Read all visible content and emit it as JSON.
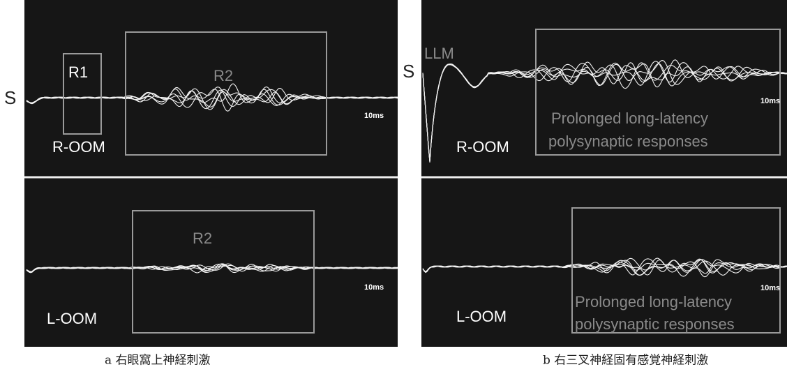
{
  "panel_a": {
    "caption": "a  右眼窩上神経刺激",
    "top": {
      "stimulus": "S",
      "r1": "R1",
      "r2": "R2",
      "channel": "R-OOM",
      "scale": "10ms"
    },
    "bottom": {
      "r2": "R2",
      "channel": "L-OOM",
      "scale": "10ms"
    }
  },
  "panel_b": {
    "caption": "b  右三叉神経固有感覚神経刺激",
    "top": {
      "stimulus": "S",
      "marker": "LLM",
      "channel": "R-OOM",
      "scale": "10ms",
      "note": [
        "Prolonged long-latency",
        "polysynaptic responses"
      ]
    },
    "bottom": {
      "channel": "L-OOM",
      "scale": "10ms",
      "note": [
        "Prolonged long-latency",
        "polysynaptic responses"
      ]
    }
  }
}
